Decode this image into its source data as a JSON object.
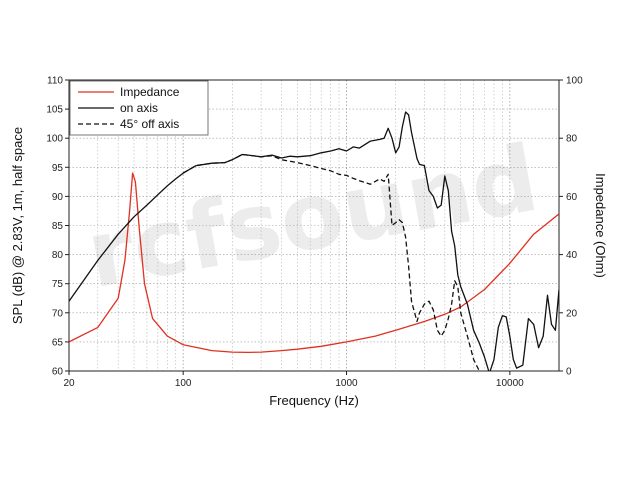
{
  "chart_data": {
    "type": "line",
    "xscale": "log",
    "xlim": [
      20,
      20000
    ],
    "ylim": [
      60,
      110
    ],
    "y2lim": [
      0,
      100
    ],
    "xlabel": "Frequency (Hz)",
    "ylabel": "SPL (dB) @ 2.83V, 1m, half space",
    "y2label": "Impedance (Ohm)",
    "x_ticks": [
      20,
      100,
      1000,
      10000
    ],
    "y_ticks": [
      60,
      65,
      70,
      75,
      80,
      85,
      90,
      95,
      100,
      105,
      110
    ],
    "y2_ticks": [
      0,
      20,
      40,
      60,
      80,
      100
    ],
    "grid": true,
    "legend_position": "top-left",
    "watermark": "rcfsound",
    "series": [
      {
        "name": "Impedance",
        "axis": "right",
        "color": "#e03020",
        "dash": "",
        "x": [
          20,
          30,
          40,
          44,
          47,
          49,
          51,
          54,
          58,
          65,
          80,
          100,
          150,
          200,
          250,
          300,
          400,
          500,
          700,
          1000,
          1500,
          2000,
          3000,
          4000,
          5000,
          7000,
          10000,
          14000,
          20000
        ],
        "y": [
          10,
          15,
          25,
          38,
          55,
          68,
          65,
          48,
          30,
          18,
          12,
          9,
          7,
          6.5,
          6.4,
          6.5,
          7,
          7.5,
          8.5,
          10,
          12,
          14,
          17,
          19.5,
          22,
          28,
          37,
          47,
          54
        ]
      },
      {
        "name": "on axis",
        "axis": "left",
        "color": "#111111",
        "dash": "",
        "x": [
          20,
          30,
          40,
          50,
          60,
          70,
          80,
          90,
          100,
          120,
          150,
          180,
          200,
          230,
          250,
          300,
          350,
          400,
          450,
          500,
          600,
          700,
          800,
          900,
          1000,
          1100,
          1200,
          1400,
          1600,
          1700,
          1800,
          1900,
          2000,
          2100,
          2200,
          2300,
          2400,
          2500,
          2700,
          2800,
          3000,
          3200,
          3400,
          3600,
          3800,
          4000,
          4200,
          4400,
          4600,
          4800,
          5000,
          5500,
          6000,
          6500,
          7000,
          7500,
          8000,
          8500,
          9000,
          9500,
          10000,
          10500,
          11000,
          12000,
          13000,
          14000,
          15000,
          16000,
          17000,
          18000,
          19000,
          20000
        ],
        "y": [
          72,
          79,
          83.5,
          86.5,
          88.5,
          90.3,
          91.8,
          93,
          94,
          95.3,
          95.7,
          95.8,
          96.3,
          97.2,
          97.1,
          96.8,
          97.1,
          96.6,
          96.9,
          96.8,
          97,
          97.5,
          97.8,
          98.2,
          97.8,
          98.5,
          98.3,
          99.5,
          99.8,
          100,
          101.7,
          100,
          97.5,
          98.5,
          102,
          104.5,
          104,
          101,
          96.5,
          95.5,
          95.3,
          91,
          90,
          88,
          88.5,
          93.5,
          91,
          84,
          81.5,
          76.5,
          74.5,
          71.5,
          67,
          64.8,
          62.4,
          59.6,
          62,
          67.5,
          69.5,
          69.3,
          66,
          62,
          60.5,
          61,
          69,
          68,
          64,
          66,
          73,
          68,
          67,
          74
        ]
      },
      {
        "name": "45° off axis",
        "axis": "left",
        "color": "#111111",
        "dash": "5,3",
        "x": [
          100,
          120,
          150,
          180,
          200,
          230,
          250,
          300,
          350,
          400,
          500,
          600,
          700,
          800,
          900,
          1000,
          1100,
          1200,
          1400,
          1600,
          1700,
          1800,
          1900,
          2000,
          2100,
          2200,
          2300,
          2400,
          2500,
          2700,
          2800,
          3000,
          3200,
          3400,
          3600,
          3800,
          4000,
          4200,
          4400,
          4600,
          4800,
          5000,
          5500,
          6000,
          6500
        ],
        "y": [
          94,
          95.3,
          95.7,
          95.8,
          96.3,
          97.2,
          97.1,
          96.8,
          97,
          96.3,
          95.8,
          95.3,
          94.8,
          94.4,
          93.8,
          93.6,
          93.1,
          92.7,
          92.1,
          93,
          92.6,
          93.8,
          85,
          85.5,
          86,
          85.5,
          83,
          78,
          72,
          68.5,
          70,
          71.5,
          72,
          70.5,
          67,
          66,
          67,
          69,
          71.5,
          75.5,
          74.5,
          70,
          66,
          62,
          60
        ]
      }
    ]
  }
}
